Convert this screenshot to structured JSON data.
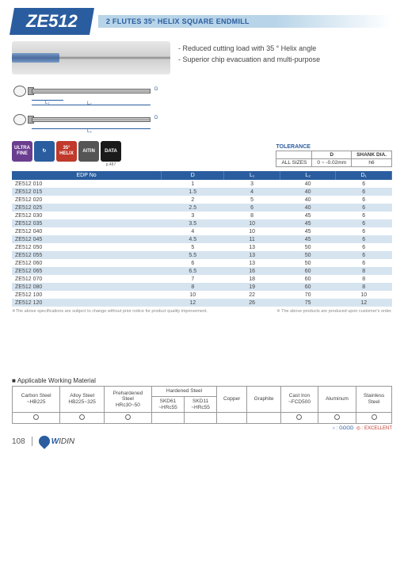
{
  "header": {
    "model": "ZE512",
    "subtitle": "2 FLUTES 35° HELIX SQUARE ENDMILL"
  },
  "features": [
    "- Reduced cutting load with 35 ° Helix angle",
    "- Superior chip evacuation and multi-purpose"
  ],
  "diagram_labels": {
    "l1": "L₁",
    "l2": "L₂",
    "d": "D"
  },
  "badges": [
    {
      "label": "ULTRA\nFINE",
      "class": "purple"
    },
    {
      "label": "↻",
      "class": "blue"
    },
    {
      "label": "35°\nHELIX",
      "class": "red"
    },
    {
      "label": "AlTiN",
      "class": "gray"
    },
    {
      "label": "DATA",
      "class": "black",
      "caption": "p.487"
    }
  ],
  "tolerance": {
    "title": "TOLERANCE",
    "headers": [
      "",
      "D",
      "SHANK DIA."
    ],
    "row": [
      "ALL SIZES",
      "0 ~ -0.02mm",
      "h6"
    ]
  },
  "table": {
    "headers": [
      "EDP No",
      "D",
      "L₁",
      "L₂",
      "D₁"
    ],
    "rows": [
      [
        "ZE512 010",
        "1",
        "3",
        "40",
        "6"
      ],
      [
        "ZE512 015",
        "1.5",
        "4",
        "40",
        "6"
      ],
      [
        "ZE512 020",
        "2",
        "5",
        "40",
        "6"
      ],
      [
        "ZE512 025",
        "2.5",
        "6",
        "40",
        "6"
      ],
      [
        "ZE512 030",
        "3",
        "8",
        "45",
        "6"
      ],
      [
        "ZE512 035",
        "3.5",
        "10",
        "45",
        "6"
      ],
      [
        "ZE512 040",
        "4",
        "10",
        "45",
        "6"
      ],
      [
        "ZE512 045",
        "4.5",
        "11",
        "45",
        "6"
      ],
      [
        "ZE512 050",
        "5",
        "13",
        "50",
        "6"
      ],
      [
        "ZE512 055",
        "5.5",
        "13",
        "50",
        "6"
      ],
      [
        "ZE512 060",
        "6",
        "13",
        "50",
        "6"
      ],
      [
        "ZE512 065",
        "6.5",
        "16",
        "60",
        "8"
      ],
      [
        "ZE512 070",
        "7",
        "18",
        "60",
        "8"
      ],
      [
        "ZE512 080",
        "8",
        "19",
        "60",
        "8"
      ],
      [
        "ZE512 100",
        "10",
        "22",
        "70",
        "10"
      ],
      [
        "ZE512 120",
        "12",
        "26",
        "75",
        "12"
      ]
    ]
  },
  "footnotes": {
    "left": "※The above specifications are subject to change without prior notice for product quality improvement.",
    "right": "※ The above products are produced upon customer's order."
  },
  "materials": {
    "title": "Applicable Working Material",
    "headers": [
      "Carbon Steel\n~HB225",
      "Alloy Steel\nHB225~325",
      "Prehardened\nSteel\nHRc30~50",
      "Hardened Steel",
      "Copper",
      "Graphite",
      "Cast Iron\n~FCD500",
      "Aluminum",
      "Stainless\nSteel"
    ],
    "sub_headers": [
      "SKD61\n~HRc55",
      "SKD11\n~HRc55"
    ],
    "marks": [
      "○",
      "○",
      "◎",
      "",
      "",
      "",
      "",
      "○",
      "○",
      "○"
    ],
    "legend_good": "○ : GOOD",
    "legend_exc": "◎ : EXCELLENT"
  },
  "footer": {
    "page": "108",
    "brand": "WIDIN"
  }
}
